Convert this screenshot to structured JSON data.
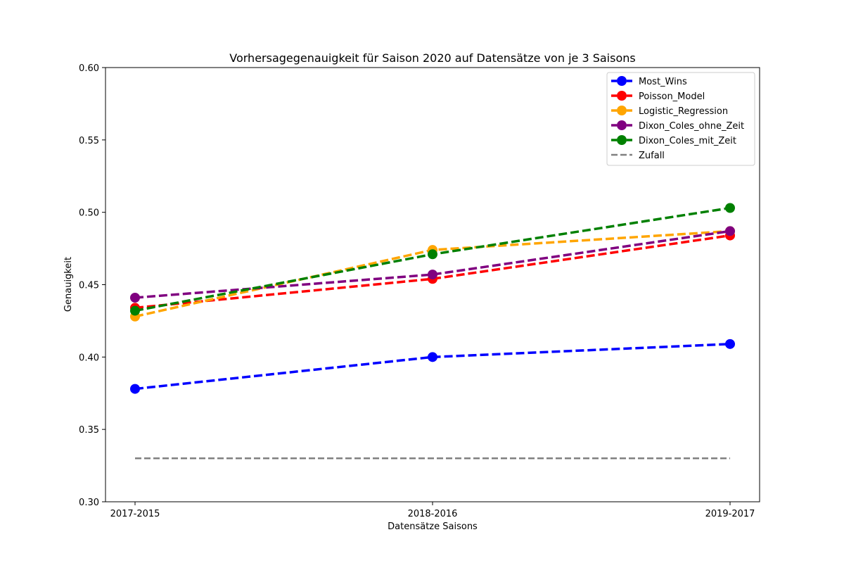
{
  "chart_data": {
    "type": "line",
    "title": "Vorhersagegenauigkeit für Saison 2020 auf Datensätze von je 3 Saisons",
    "xlabel": "Datensätze Saisons",
    "ylabel": "Genauigkeit",
    "categories": [
      "2017-2015",
      "2018-2016",
      "2019-2017"
    ],
    "ylim": [
      0.3,
      0.6
    ],
    "yticks": [
      "0.30",
      "0.35",
      "0.40",
      "0.45",
      "0.50",
      "0.55",
      "0.60"
    ],
    "grid": false,
    "legend_position": "top-right",
    "series": [
      {
        "name": "Most_Wins",
        "color": "#0000ff",
        "values": [
          0.378,
          0.4,
          0.409
        ],
        "markers": true
      },
      {
        "name": "Poisson_Model",
        "color": "#ff0000",
        "values": [
          0.434,
          0.454,
          0.484
        ],
        "markers": true
      },
      {
        "name": "Logistic_Regression",
        "color": "#ffa500",
        "values": [
          0.428,
          0.474,
          0.487
        ],
        "markers": true
      },
      {
        "name": "Dixon_Coles_ohne_Zeit",
        "color": "#800080",
        "values": [
          0.441,
          0.457,
          0.487
        ],
        "markers": true
      },
      {
        "name": "Dixon_Coles_mit_Zeit",
        "color": "#008000",
        "values": [
          0.432,
          0.471,
          0.503
        ],
        "markers": true
      },
      {
        "name": "Zufall",
        "color": "#808080",
        "values": [
          0.33,
          0.33,
          0.33
        ],
        "markers": false
      }
    ]
  }
}
